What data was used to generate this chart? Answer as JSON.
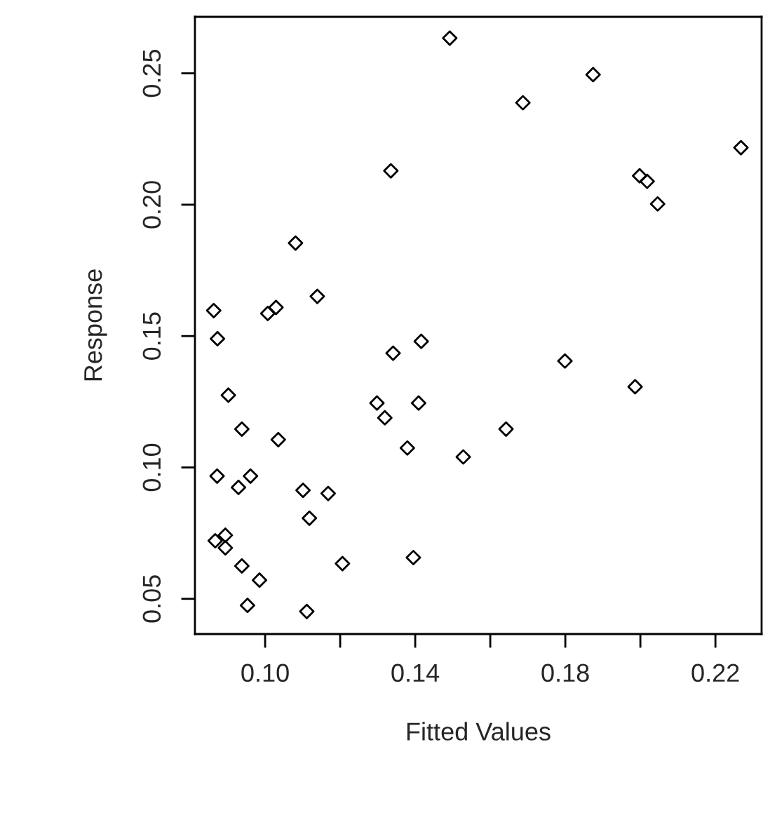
{
  "chart_data": {
    "type": "scatter",
    "xlabel": "Fitted Values",
    "ylabel": "Response",
    "marker": "diamond",
    "grid": false,
    "xlim": [
      0.0813,
      0.2323
    ],
    "ylim": [
      0.0366,
      0.2715
    ],
    "xticks": [
      {
        "value": 0.1,
        "label": "0.10"
      },
      {
        "value": 0.12,
        "label": null
      },
      {
        "value": 0.14,
        "label": "0.14"
      },
      {
        "value": 0.16,
        "label": null
      },
      {
        "value": 0.18,
        "label": "0.18"
      },
      {
        "value": 0.2,
        "label": null
      },
      {
        "value": 0.22,
        "label": "0.22"
      }
    ],
    "yticks": [
      {
        "value": 0.05,
        "label": "0.05"
      },
      {
        "value": 0.1,
        "label": "0.10"
      },
      {
        "value": 0.15,
        "label": "0.15"
      },
      {
        "value": 0.2,
        "label": "0.20"
      },
      {
        "value": 0.25,
        "label": "0.25"
      }
    ],
    "series": [
      {
        "color": "#000000",
        "x": [
          0.1492,
          0.1335,
          0.1081,
          0.1139,
          0.0863,
          0.1007,
          0.1029,
          0.0873,
          0.1341,
          0.1416,
          0.1874,
          0.1687,
          0.2268,
          0.1998,
          0.2018,
          0.2046,
          0.0902,
          0.1298,
          0.1319,
          0.1409,
          0.0938,
          0.1035,
          0.1379,
          0.1528,
          0.0872,
          0.0961,
          0.0929,
          0.1101,
          0.1168,
          0.1118,
          0.0867,
          0.0894,
          0.0894,
          0.0938,
          0.1206,
          0.1395,
          0.0985,
          0.0953,
          0.1111,
          0.1799,
          0.1986,
          0.1642
        ],
        "values": [
          0.2634,
          0.2129,
          0.1854,
          0.1651,
          0.1597,
          0.1586,
          0.1609,
          0.149,
          0.1435,
          0.148,
          0.2495,
          0.2388,
          0.2217,
          0.211,
          0.2089,
          0.2003,
          0.1275,
          0.1245,
          0.1189,
          0.1245,
          0.1146,
          0.1106,
          0.1074,
          0.104,
          0.0967,
          0.0967,
          0.0924,
          0.0913,
          0.0901,
          0.0807,
          0.0721,
          0.0742,
          0.0694,
          0.0625,
          0.0634,
          0.0657,
          0.0571,
          0.0475,
          0.0452,
          0.1405,
          0.1307,
          0.1146
        ]
      }
    ]
  }
}
